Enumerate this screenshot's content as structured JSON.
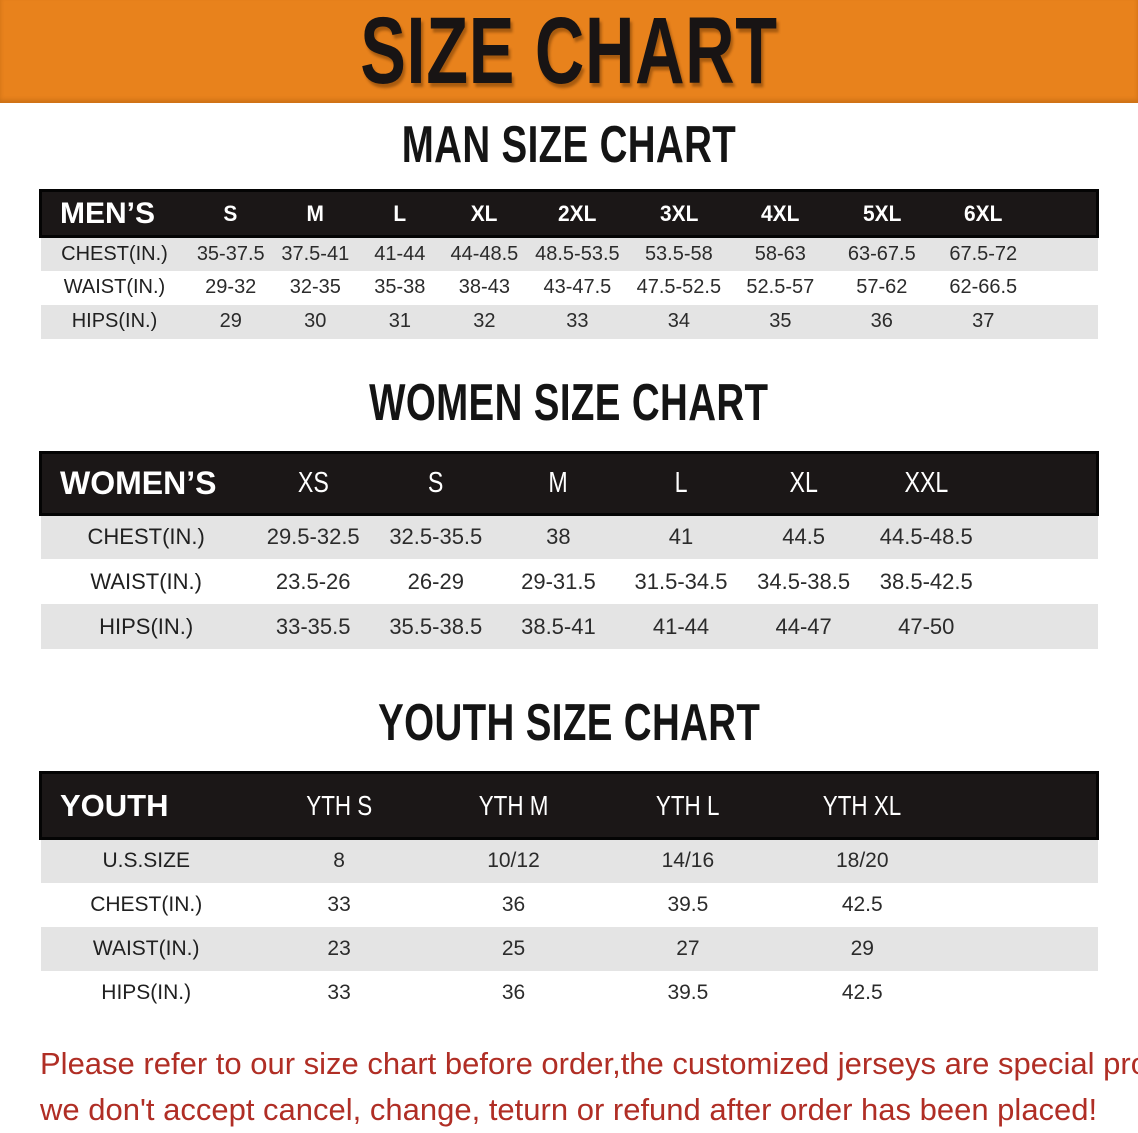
{
  "banner": {
    "title": "SIZE CHART"
  },
  "colors": {
    "banner_bg": "#E8821C",
    "header_bar_bg": "#1B1717",
    "row_stripe": "#E4E4E4",
    "note_red": "#B02E25"
  },
  "sections": {
    "men": {
      "heading": "MAN SIZE CHART"
    },
    "women": {
      "heading": "WOMEN SIZE CHART"
    },
    "youth": {
      "heading": "YOUTH SIZE CHART"
    }
  },
  "tables": {
    "men": {
      "label": "MEN’S",
      "columns": [
        "S",
        "M",
        "L",
        "XL",
        "2XL",
        "3XL",
        "4XL",
        "5XL",
        "6XL"
      ],
      "rows": [
        {
          "label": "CHEST(IN.)",
          "values": [
            "35-37.5",
            "37.5-41",
            "41-44",
            "44-48.5",
            "48.5-53.5",
            "53.5-58",
            "58-63",
            "63-67.5",
            "67.5-72"
          ]
        },
        {
          "label": "WAIST(IN.)",
          "values": [
            "29-32",
            "32-35",
            "35-38",
            "38-43",
            "43-47.5",
            "47.5-52.5",
            "52.5-57",
            "57-62",
            "62-66.5"
          ]
        },
        {
          "label": "HIPS(IN.)",
          "values": [
            "29",
            "30",
            "31",
            "32",
            "33",
            "34",
            "35",
            "36",
            "37"
          ]
        }
      ]
    },
    "women": {
      "label": "WOMEN’S",
      "columns": [
        "XS",
        "S",
        "M",
        "L",
        "XL",
        "XXL"
      ],
      "rows": [
        {
          "label": "CHEST(IN.)",
          "values": [
            "29.5-32.5",
            "32.5-35.5",
            "38",
            "41",
            "44.5",
            "44.5-48.5"
          ]
        },
        {
          "label": "WAIST(IN.)",
          "values": [
            "23.5-26",
            "26-29",
            "29-31.5",
            "31.5-34.5",
            "34.5-38.5",
            "38.5-42.5"
          ]
        },
        {
          "label": "HIPS(IN.)",
          "values": [
            "33-35.5",
            "35.5-38.5",
            "38.5-41",
            "41-44",
            "44-47",
            "47-50"
          ]
        }
      ]
    },
    "youth": {
      "label": "YOUTH",
      "columns": [
        "YTH S",
        "YTH M",
        "YTH L",
        "YTH XL"
      ],
      "rows": [
        {
          "label": "U.S.SIZE",
          "values": [
            "8",
            "10/12",
            "14/16",
            "18/20"
          ]
        },
        {
          "label": "CHEST(IN.)",
          "values": [
            "33",
            "36",
            "39.5",
            "42.5"
          ]
        },
        {
          "label": "WAIST(IN.)",
          "values": [
            "23",
            "25",
            "27",
            "29"
          ]
        },
        {
          "label": "HIPS(IN.)",
          "values": [
            "33",
            "36",
            "39.5",
            "42.5"
          ]
        }
      ]
    }
  },
  "note": {
    "line1": "Please refer to our size chart before order,the customized jerseys are special products,",
    "line2": "we don't accept cancel, change, teturn or refund after order has been placed!"
  }
}
